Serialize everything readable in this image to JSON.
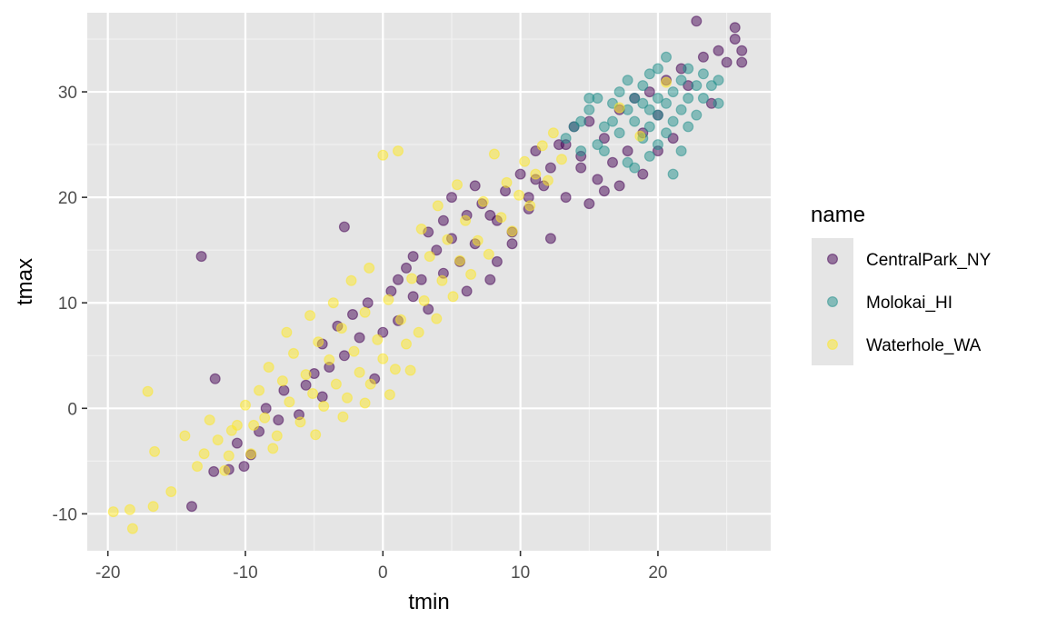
{
  "chart_data": {
    "type": "scatter",
    "title": "",
    "xlabel": "tmin",
    "ylabel": "tmax",
    "xlim": [
      -21.5,
      28.2
    ],
    "ylim": [
      -13.5,
      37.5
    ],
    "x_ticks": [
      -20,
      -10,
      0,
      10,
      20
    ],
    "y_ticks": [
      -10,
      0,
      10,
      20,
      30
    ],
    "grid": true,
    "panel_background": "#e5e5e5",
    "point_alpha": 0.5,
    "legend": {
      "title": "name",
      "position": "right"
    },
    "series": [
      {
        "name": "CentralPark_NY",
        "color": "#440154",
        "points": [
          [
            -13.2,
            14.4
          ],
          [
            -12.2,
            2.8
          ],
          [
            -12.3,
            -6.0
          ],
          [
            -13.9,
            -9.3
          ],
          [
            -11.2,
            -5.8
          ],
          [
            -10.6,
            -3.3
          ],
          [
            -10.1,
            -5.5
          ],
          [
            -9.6,
            -4.4
          ],
          [
            -9.0,
            -2.2
          ],
          [
            -8.5,
            0.0
          ],
          [
            -7.6,
            -1.1
          ],
          [
            -7.2,
            1.7
          ],
          [
            -6.1,
            -0.6
          ],
          [
            -5.6,
            2.2
          ],
          [
            -5.0,
            3.3
          ],
          [
            -4.4,
            6.1
          ],
          [
            -4.4,
            1.1
          ],
          [
            -3.9,
            3.9
          ],
          [
            -3.3,
            7.8
          ],
          [
            -2.8,
            17.2
          ],
          [
            -2.8,
            5.0
          ],
          [
            -2.2,
            8.9
          ],
          [
            -1.7,
            6.7
          ],
          [
            -1.1,
            10.0
          ],
          [
            -0.6,
            2.8
          ],
          [
            0.0,
            7.2
          ],
          [
            0.6,
            11.1
          ],
          [
            1.1,
            8.3
          ],
          [
            1.7,
            13.3
          ],
          [
            2.2,
            10.6
          ],
          [
            2.8,
            12.2
          ],
          [
            3.3,
            9.4
          ],
          [
            3.9,
            15.0
          ],
          [
            4.4,
            12.8
          ],
          [
            5.0,
            16.1
          ],
          [
            5.6,
            13.9
          ],
          [
            6.1,
            18.3
          ],
          [
            6.7,
            15.6
          ],
          [
            7.2,
            19.4
          ],
          [
            7.8,
            12.2
          ],
          [
            8.3,
            17.8
          ],
          [
            8.9,
            20.6
          ],
          [
            9.4,
            16.7
          ],
          [
            10.0,
            22.2
          ],
          [
            10.6,
            18.9
          ],
          [
            11.1,
            24.4
          ],
          [
            11.7,
            21.1
          ],
          [
            12.2,
            16.1
          ],
          [
            12.8,
            25.0
          ],
          [
            13.3,
            20.0
          ],
          [
            13.9,
            26.7
          ],
          [
            14.4,
            22.8
          ],
          [
            15.0,
            27.2
          ],
          [
            15.6,
            21.7
          ],
          [
            16.1,
            25.6
          ],
          [
            16.7,
            23.3
          ],
          [
            17.2,
            28.3
          ],
          [
            17.8,
            24.4
          ],
          [
            18.3,
            29.4
          ],
          [
            18.9,
            26.1
          ],
          [
            19.4,
            30.0
          ],
          [
            20.0,
            27.8
          ],
          [
            20.6,
            31.1
          ],
          [
            21.1,
            25.6
          ],
          [
            21.7,
            32.2
          ],
          [
            22.2,
            30.6
          ],
          [
            22.8,
            36.7
          ],
          [
            23.3,
            33.3
          ],
          [
            23.9,
            28.9
          ],
          [
            24.4,
            33.9
          ],
          [
            25.0,
            32.8
          ],
          [
            25.6,
            35.0
          ],
          [
            25.6,
            36.1
          ],
          [
            26.1,
            33.9
          ],
          [
            26.1,
            32.8
          ],
          [
            20.0,
            24.4
          ],
          [
            18.9,
            22.2
          ],
          [
            17.2,
            21.1
          ],
          [
            16.1,
            20.6
          ],
          [
            15.0,
            19.4
          ],
          [
            14.4,
            23.9
          ],
          [
            13.3,
            25.0
          ],
          [
            12.2,
            22.8
          ],
          [
            11.1,
            21.7
          ],
          [
            10.6,
            20.0
          ],
          [
            9.4,
            15.6
          ],
          [
            8.3,
            13.9
          ],
          [
            7.8,
            18.3
          ],
          [
            6.7,
            21.1
          ],
          [
            6.1,
            11.1
          ],
          [
            5.0,
            20.0
          ],
          [
            4.4,
            17.8
          ],
          [
            3.3,
            16.7
          ],
          [
            2.2,
            14.4
          ],
          [
            1.1,
            12.2
          ]
        ]
      },
      {
        "name": "Molokai_HI",
        "color": "#21908C",
        "points": [
          [
            13.3,
            25.6
          ],
          [
            13.9,
            26.7
          ],
          [
            14.4,
            27.2
          ],
          [
            15.0,
            28.3
          ],
          [
            15.6,
            25.0
          ],
          [
            15.6,
            29.4
          ],
          [
            16.1,
            26.7
          ],
          [
            16.7,
            28.9
          ],
          [
            16.7,
            27.2
          ],
          [
            17.2,
            30.0
          ],
          [
            17.2,
            26.1
          ],
          [
            17.8,
            28.3
          ],
          [
            17.8,
            31.1
          ],
          [
            18.3,
            27.2
          ],
          [
            18.3,
            29.4
          ],
          [
            18.9,
            25.6
          ],
          [
            18.9,
            28.9
          ],
          [
            18.9,
            30.6
          ],
          [
            19.4,
            26.7
          ],
          [
            19.4,
            28.3
          ],
          [
            19.4,
            31.7
          ],
          [
            20.0,
            27.8
          ],
          [
            20.0,
            29.4
          ],
          [
            20.0,
            25.0
          ],
          [
            20.6,
            33.3
          ],
          [
            20.6,
            28.9
          ],
          [
            20.6,
            26.1
          ],
          [
            21.1,
            30.0
          ],
          [
            21.1,
            27.2
          ],
          [
            21.1,
            22.2
          ],
          [
            21.7,
            31.1
          ],
          [
            21.7,
            28.3
          ],
          [
            21.7,
            24.4
          ],
          [
            22.2,
            29.4
          ],
          [
            22.2,
            26.7
          ],
          [
            22.2,
            32.2
          ],
          [
            22.8,
            30.6
          ],
          [
            22.8,
            27.8
          ],
          [
            23.3,
            31.7
          ],
          [
            23.3,
            29.4
          ],
          [
            23.9,
            30.6
          ],
          [
            24.4,
            31.1
          ],
          [
            24.4,
            28.9
          ],
          [
            17.8,
            23.3
          ],
          [
            18.3,
            22.8
          ],
          [
            19.4,
            23.9
          ],
          [
            16.1,
            24.4
          ],
          [
            14.4,
            24.4
          ],
          [
            15.0,
            29.4
          ],
          [
            20.0,
            32.2
          ]
        ]
      },
      {
        "name": "Waterhole_WA",
        "color": "#FDE725",
        "points": [
          [
            -19.6,
            -9.8
          ],
          [
            -18.4,
            -9.6
          ],
          [
            -18.2,
            -11.4
          ],
          [
            -17.1,
            1.6
          ],
          [
            -16.7,
            -9.3
          ],
          [
            -16.6,
            -4.1
          ],
          [
            -15.4,
            -7.9
          ],
          [
            -14.4,
            -2.6
          ],
          [
            -13.5,
            -5.5
          ],
          [
            -13.0,
            -4.3
          ],
          [
            -12.6,
            -1.1
          ],
          [
            -12.0,
            -3.0
          ],
          [
            -11.5,
            -5.9
          ],
          [
            -11.0,
            -2.1
          ],
          [
            -10.6,
            -1.6
          ],
          [
            -10.0,
            0.3
          ],
          [
            -9.6,
            -4.3
          ],
          [
            -9.0,
            1.7
          ],
          [
            -8.6,
            -0.9
          ],
          [
            -8.3,
            3.9
          ],
          [
            -7.7,
            -2.6
          ],
          [
            -7.3,
            2.6
          ],
          [
            -6.8,
            0.6
          ],
          [
            -6.5,
            5.2
          ],
          [
            -6.0,
            -1.3
          ],
          [
            -5.6,
            3.2
          ],
          [
            -5.1,
            1.4
          ],
          [
            -4.7,
            6.3
          ],
          [
            -4.3,
            0.2
          ],
          [
            -3.9,
            4.6
          ],
          [
            -3.4,
            2.3
          ],
          [
            -3.0,
            7.6
          ],
          [
            -2.6,
            1.0
          ],
          [
            -2.1,
            5.4
          ],
          [
            -1.7,
            3.4
          ],
          [
            -1.3,
            9.1
          ],
          [
            -0.9,
            2.3
          ],
          [
            -0.4,
            6.5
          ],
          [
            0.0,
            24.0
          ],
          [
            0.0,
            4.7
          ],
          [
            0.4,
            10.3
          ],
          [
            0.9,
            3.7
          ],
          [
            1.1,
            24.4
          ],
          [
            1.3,
            8.4
          ],
          [
            1.7,
            6.1
          ],
          [
            2.1,
            12.3
          ],
          [
            2.6,
            7.2
          ],
          [
            3.0,
            10.2
          ],
          [
            3.4,
            14.4
          ],
          [
            3.9,
            8.5
          ],
          [
            4.3,
            12.1
          ],
          [
            4.7,
            16.0
          ],
          [
            5.1,
            10.6
          ],
          [
            5.6,
            14.0
          ],
          [
            6.0,
            17.8
          ],
          [
            6.4,
            12.7
          ],
          [
            6.9,
            15.9
          ],
          [
            7.3,
            19.6
          ],
          [
            7.7,
            14.6
          ],
          [
            8.1,
            24.1
          ],
          [
            8.6,
            18.1
          ],
          [
            9.0,
            21.4
          ],
          [
            9.4,
            16.8
          ],
          [
            9.9,
            20.2
          ],
          [
            10.3,
            23.4
          ],
          [
            10.7,
            19.2
          ],
          [
            11.1,
            22.2
          ],
          [
            11.6,
            24.9
          ],
          [
            12.0,
            21.6
          ],
          [
            12.4,
            26.1
          ],
          [
            13.0,
            23.6
          ],
          [
            17.2,
            28.5
          ],
          [
            18.7,
            25.8
          ],
          [
            20.6,
            30.9
          ],
          [
            -7.0,
            7.2
          ],
          [
            -5.3,
            8.8
          ],
          [
            -3.6,
            10.0
          ],
          [
            -2.3,
            12.1
          ],
          [
            -1.0,
            13.3
          ],
          [
            2.8,
            17.0
          ],
          [
            4.0,
            19.2
          ],
          [
            5.4,
            21.2
          ],
          [
            -11.2,
            -4.5
          ],
          [
            -9.4,
            -1.6
          ],
          [
            -8.0,
            -3.8
          ],
          [
            -4.9,
            -2.5
          ],
          [
            -2.9,
            -0.8
          ],
          [
            -1.3,
            0.5
          ],
          [
            0.5,
            1.3
          ],
          [
            2.0,
            3.6
          ]
        ]
      }
    ]
  }
}
